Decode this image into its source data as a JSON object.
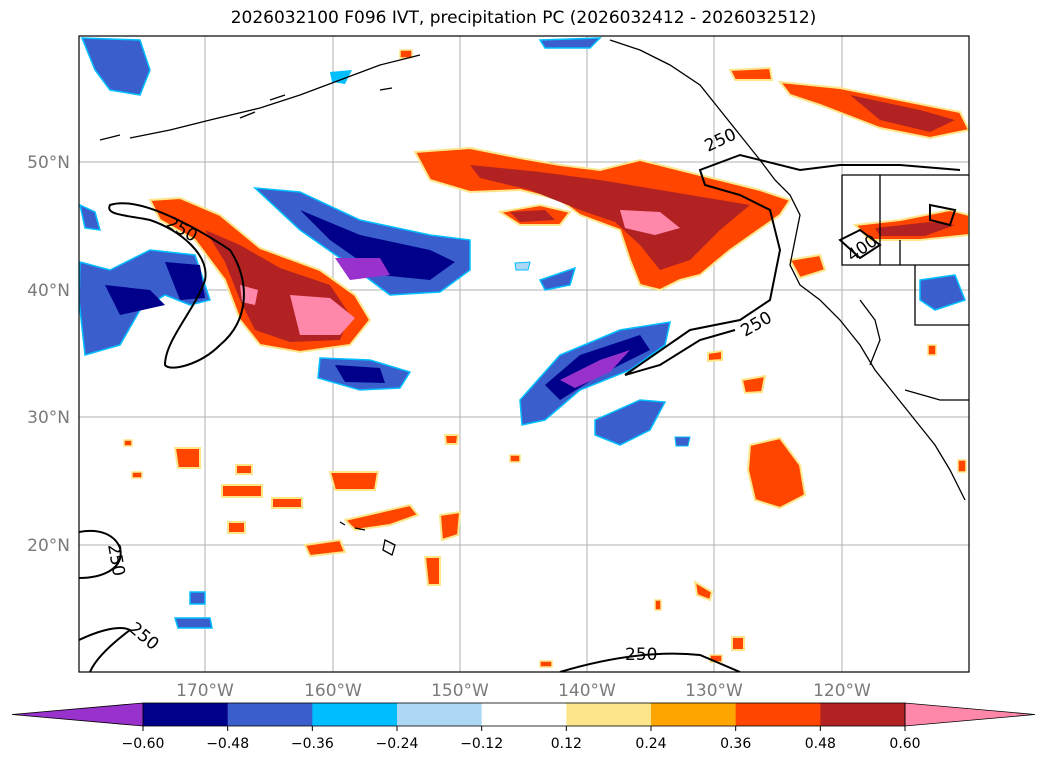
{
  "title": "2026032100 F096 IVT, precipitation PC (2026032412 - 2026032512)",
  "map": {
    "lon_range": [
      "180°W",
      "110°W"
    ],
    "lat_range": [
      "10°N",
      "60°N"
    ],
    "lat_labels": [
      "50°N",
      "40°N",
      "30°N",
      "20°N"
    ],
    "lon_labels": [
      "170°W",
      "160°W",
      "150°W",
      "140°W",
      "130°W",
      "120°W"
    ],
    "gridlines": true,
    "contour_labels": [
      "250",
      "250",
      "250",
      "250",
      "250",
      "400",
      "250"
    ]
  },
  "colorbar": {
    "ticks": [
      "−0.60",
      "−0.48",
      "−0.36",
      "−0.24",
      "−0.12",
      "0.12",
      "0.24",
      "0.36",
      "0.48",
      "0.60"
    ],
    "colors": [
      "#9932cc",
      "#00008b",
      "#3a5fcd",
      "#00bfff",
      "#add8f5",
      "#ffffff",
      "#fde68a",
      "#ffa500",
      "#ff4500",
      "#b22222",
      "#ff88aa"
    ],
    "extend": "both"
  }
}
